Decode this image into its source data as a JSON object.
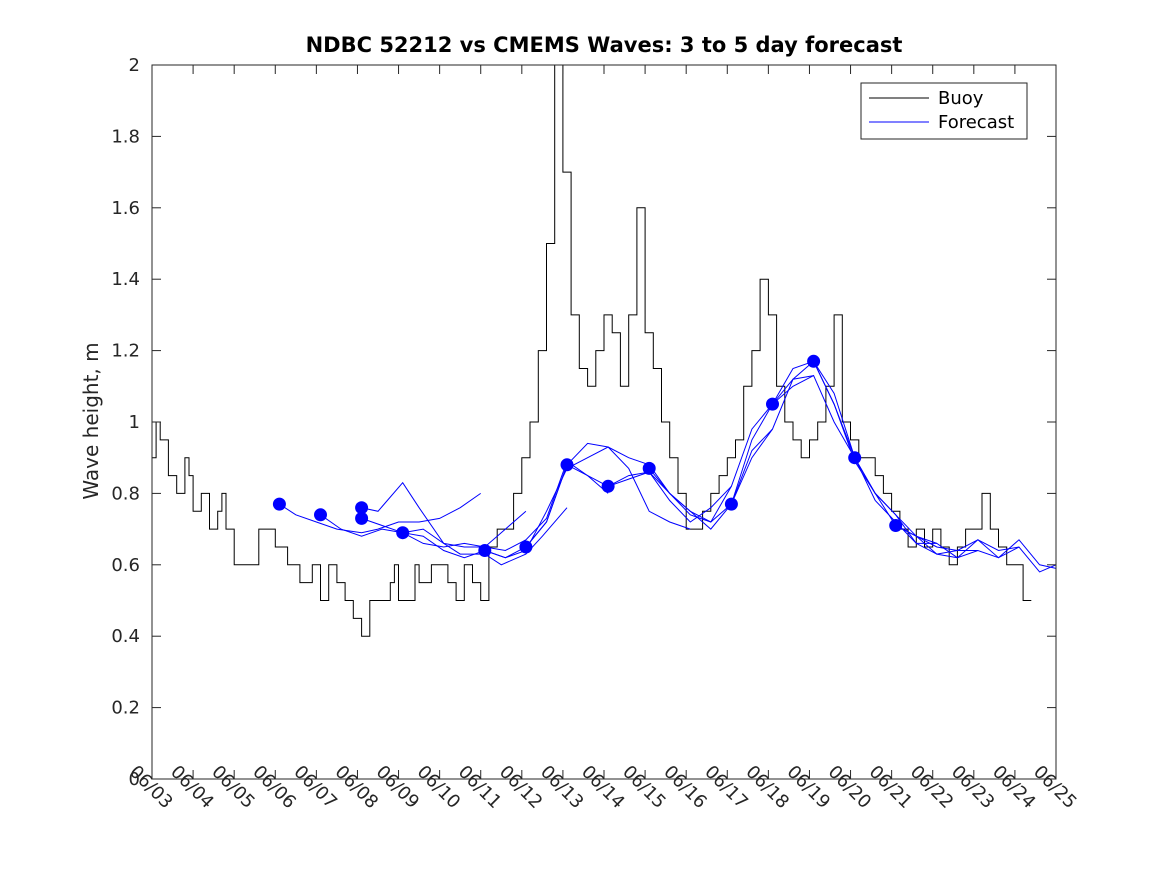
{
  "chart_data": {
    "type": "line",
    "title": "NDBC 52212 vs CMEMS Waves: 3 to 5 day forecast",
    "xlabel": "",
    "ylabel": "Wave height, m",
    "xlim": [
      "06/03",
      "06/25"
    ],
    "ylim": [
      0,
      2
    ],
    "x_tick_labels": [
      "06/03",
      "06/04",
      "06/05",
      "06/06",
      "06/07",
      "06/08",
      "06/09",
      "06/10",
      "06/11",
      "06/12",
      "06/13",
      "06/14",
      "06/15",
      "06/16",
      "06/17",
      "06/18",
      "06/19",
      "06/20",
      "06/21",
      "06/22",
      "06/23",
      "06/24",
      "06/25"
    ],
    "y_ticks": [
      0,
      0.2,
      0.4,
      0.6,
      0.8,
      1,
      1.2,
      1.4,
      1.6,
      1.8,
      2
    ],
    "y_tick_labels": [
      "0",
      "0.2",
      "0.4",
      "0.6",
      "0.8",
      "1",
      "1.2",
      "1.4",
      "1.6",
      "1.8",
      "2"
    ],
    "legend": {
      "placement": "top-right",
      "entries": [
        {
          "name": "Buoy",
          "color": "#000000"
        },
        {
          "name": "Forecast",
          "color": "#0000ff"
        }
      ]
    },
    "grid": false,
    "series": [
      {
        "name": "Buoy",
        "color": "#000000",
        "x_day": [
          0,
          0.1,
          0.2,
          0.4,
          0.6,
          0.8,
          0.9,
          1.0,
          1.2,
          1.4,
          1.6,
          1.7,
          1.8,
          2.0,
          2.2,
          2.4,
          2.6,
          2.8,
          3.0,
          3.3,
          3.6,
          3.9,
          4.1,
          4.3,
          4.5,
          4.7,
          4.9,
          5.1,
          5.3,
          5.4,
          5.6,
          5.8,
          5.9,
          6.0,
          6.2,
          6.4,
          6.5,
          6.8,
          7.0,
          7.2,
          7.4,
          7.6,
          7.8,
          8.0,
          8.2,
          8.4,
          8.6,
          8.8,
          9.0,
          9.2,
          9.4,
          9.6,
          9.8,
          10.0,
          10.2,
          10.4,
          10.6,
          10.8,
          11.0,
          11.2,
          11.4,
          11.6,
          11.8,
          12.0,
          12.2,
          12.4,
          12.6,
          12.8,
          13.0,
          13.2,
          13.4,
          13.6,
          13.8,
          14.0,
          14.2,
          14.4,
          14.6,
          14.8,
          15.0,
          15.2,
          15.4,
          15.6,
          15.8,
          16.0,
          16.2,
          16.4,
          16.6,
          16.8,
          17.0,
          17.2,
          17.4,
          17.6,
          17.8,
          18.0,
          18.2,
          18.4,
          18.6,
          18.8,
          19.0,
          19.2,
          19.4,
          19.6,
          19.8,
          20.0,
          20.2,
          20.4,
          20.6,
          20.8,
          21.0,
          21.2,
          21.4
        ],
        "y": [
          0.9,
          1.0,
          0.95,
          0.85,
          0.8,
          0.9,
          0.85,
          0.75,
          0.8,
          0.7,
          0.75,
          0.8,
          0.7,
          0.6,
          0.6,
          0.6,
          0.7,
          0.7,
          0.65,
          0.6,
          0.55,
          0.6,
          0.5,
          0.6,
          0.55,
          0.5,
          0.45,
          0.4,
          0.5,
          0.5,
          0.5,
          0.55,
          0.6,
          0.5,
          0.5,
          0.6,
          0.55,
          0.6,
          0.6,
          0.55,
          0.5,
          0.6,
          0.55,
          0.5,
          0.65,
          0.7,
          0.7,
          0.8,
          0.9,
          1.0,
          1.2,
          1.5,
          2.0,
          1.7,
          1.3,
          1.15,
          1.1,
          1.2,
          1.3,
          1.25,
          1.1,
          1.3,
          1.6,
          1.25,
          1.15,
          1.0,
          0.9,
          0.8,
          0.7,
          0.7,
          0.75,
          0.8,
          0.85,
          0.9,
          0.95,
          1.1,
          1.2,
          1.4,
          1.3,
          1.1,
          1.0,
          0.95,
          0.9,
          0.95,
          1.0,
          1.1,
          1.3,
          1.0,
          0.95,
          0.9,
          0.9,
          0.85,
          0.8,
          0.75,
          0.7,
          0.65,
          0.7,
          0.65,
          0.7,
          0.65,
          0.6,
          0.65,
          0.7,
          0.7,
          0.8,
          0.7,
          0.65,
          0.6,
          0.6,
          0.5,
          0.5
        ]
      }
    ],
    "forecast_runs": [
      {
        "x_day": [
          3.1,
          3.5,
          4.0,
          4.5,
          5.1,
          5.5,
          6.0,
          6.5,
          7.0,
          7.5,
          8.0
        ],
        "y": [
          0.77,
          0.74,
          0.72,
          0.7,
          0.69,
          0.7,
          0.72,
          0.72,
          0.73,
          0.76,
          0.8
        ]
      },
      {
        "x_day": [
          4.1,
          4.6,
          5.1,
          5.6,
          6.1,
          6.6,
          7.1,
          7.6,
          8.1,
          8.6,
          9.1
        ],
        "y": [
          0.74,
          0.7,
          0.68,
          0.7,
          0.69,
          0.66,
          0.65,
          0.66,
          0.65,
          0.7,
          0.75
        ]
      },
      {
        "x_day": [
          5.1,
          5.5,
          6.1,
          6.5,
          7.1,
          7.5,
          8.1,
          8.5,
          9.1,
          9.5,
          10.1
        ],
        "y": [
          0.76,
          0.75,
          0.83,
          0.76,
          0.66,
          0.63,
          0.63,
          0.6,
          0.63,
          0.68,
          0.76
        ]
      },
      {
        "x_day": [
          5.1,
          5.6,
          6.1,
          6.6,
          7.1,
          7.6,
          8.1,
          8.6,
          9.1,
          9.6,
          10.1
        ],
        "y": [
          0.73,
          0.71,
          0.69,
          0.68,
          0.64,
          0.62,
          0.64,
          0.62,
          0.65,
          0.72,
          0.88
        ]
      },
      {
        "x_day": [
          6.1,
          6.6,
          7.1,
          7.6,
          8.1,
          8.6,
          9.1,
          9.6,
          10.1,
          10.6,
          11.1
        ],
        "y": [
          0.69,
          0.7,
          0.66,
          0.65,
          0.65,
          0.64,
          0.67,
          0.73,
          0.89,
          0.85,
          0.8
        ]
      },
      {
        "x_day": [
          8.1,
          8.6,
          9.1,
          9.6,
          10.1,
          10.6,
          11.1,
          11.6,
          12.1,
          12.6,
          13.1
        ],
        "y": [
          0.64,
          0.62,
          0.64,
          0.75,
          0.87,
          0.9,
          0.93,
          0.87,
          0.75,
          0.72,
          0.7
        ]
      },
      {
        "x_day": [
          9.1,
          9.6,
          10.1,
          10.6,
          11.1,
          11.6,
          12.1,
          12.6,
          13.1,
          13.6,
          14.1
        ],
        "y": [
          0.65,
          0.72,
          0.88,
          0.85,
          0.82,
          0.84,
          0.86,
          0.78,
          0.72,
          0.76,
          0.82
        ]
      },
      {
        "x_day": [
          10.1,
          10.6,
          11.1,
          11.6,
          12.1,
          12.6,
          13.1,
          13.6,
          14.1,
          14.6,
          15.1
        ],
        "y": [
          0.88,
          0.94,
          0.93,
          0.9,
          0.88,
          0.8,
          0.75,
          0.7,
          0.77,
          0.92,
          0.98
        ]
      },
      {
        "x_day": [
          11.1,
          11.6,
          12.1,
          12.6,
          13.1,
          13.6,
          14.1,
          14.6,
          15.1,
          15.6,
          16.1
        ],
        "y": [
          0.82,
          0.85,
          0.86,
          0.8,
          0.74,
          0.72,
          0.77,
          0.95,
          1.05,
          1.12,
          1.13
        ]
      },
      {
        "x_day": [
          12.1,
          12.6,
          13.1,
          13.6,
          14.1,
          14.6,
          15.1,
          15.6,
          16.1,
          16.6,
          17.1
        ],
        "y": [
          0.87,
          0.8,
          0.75,
          0.72,
          0.82,
          0.98,
          1.05,
          1.15,
          1.17,
          1.08,
          0.9
        ]
      },
      {
        "x_day": [
          14.1,
          14.6,
          15.1,
          15.6,
          16.1,
          16.6,
          17.1,
          17.6,
          18.1,
          18.6,
          19.1
        ],
        "y": [
          0.77,
          0.9,
          0.98,
          1.12,
          1.17,
          1.05,
          0.89,
          0.8,
          0.71,
          0.68,
          0.66
        ]
      },
      {
        "x_day": [
          15.1,
          15.6,
          16.1,
          16.6,
          17.1,
          17.6,
          18.1,
          18.6,
          19.1,
          19.6,
          20.1
        ],
        "y": [
          1.05,
          1.1,
          1.13,
          1.0,
          0.9,
          0.8,
          0.74,
          0.66,
          0.63,
          0.64,
          0.64
        ]
      },
      {
        "x_day": [
          16.1,
          16.6,
          17.1,
          17.6,
          18.1,
          18.6,
          19.1,
          19.6,
          20.1,
          20.6,
          21.1
        ],
        "y": [
          1.17,
          1.05,
          0.9,
          0.78,
          0.72,
          0.66,
          0.66,
          0.62,
          0.67,
          0.62,
          0.65
        ]
      },
      {
        "x_day": [
          17.1,
          17.6,
          18.1,
          18.6,
          19.1,
          19.6,
          20.1,
          20.6,
          21.1,
          21.6,
          22.0
        ],
        "y": [
          0.9,
          0.8,
          0.74,
          0.68,
          0.63,
          0.62,
          0.64,
          0.62,
          0.67,
          0.6,
          0.59
        ]
      },
      {
        "x_day": [
          18.1,
          18.6,
          19.1,
          19.6,
          20.1,
          20.6,
          21.1,
          21.6,
          22.0
        ],
        "y": [
          0.71,
          0.68,
          0.65,
          0.64,
          0.67,
          0.64,
          0.65,
          0.58,
          0.6
        ]
      }
    ]
  }
}
